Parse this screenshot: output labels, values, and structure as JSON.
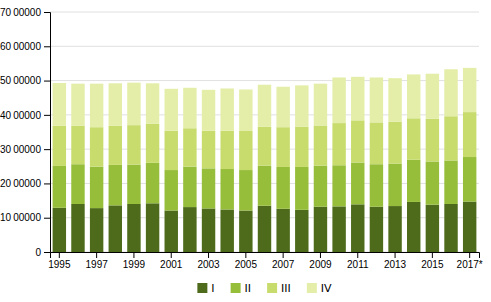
{
  "chart_data": {
    "type": "bar",
    "stacked": true,
    "grid": true,
    "legend": "bottom",
    "categories": [
      "1995",
      null,
      "1997",
      null,
      "1999",
      null,
      "2001",
      null,
      "2003",
      null,
      "2005",
      null,
      "2007",
      null,
      "2009",
      null,
      "2011",
      null,
      "2013",
      null,
      "2015",
      null,
      "2017*"
    ],
    "series": [
      {
        "name": "I",
        "color": "#4d6b1a",
        "values": [
          12900,
          14000,
          12800,
          13600,
          14000,
          14200,
          12100,
          13100,
          12700,
          12400,
          12100,
          13500,
          12600,
          12300,
          13200,
          13300,
          13900,
          13200,
          13400,
          14600,
          13800,
          14000,
          14700
        ]
      },
      {
        "name": "II",
        "color": "#97be3a",
        "values": [
          12200,
          11600,
          12100,
          11800,
          11500,
          11800,
          11800,
          11800,
          11700,
          11800,
          11800,
          11700,
          12200,
          12500,
          12000,
          12000,
          12200,
          12400,
          12400,
          12300,
          12600,
          12700,
          13000
        ]
      },
      {
        "name": "III",
        "color": "#c8dc6e",
        "values": [
          11700,
          11200,
          11500,
          11400,
          11500,
          11400,
          11500,
          11200,
          11000,
          11200,
          11400,
          11300,
          11600,
          11700,
          11700,
          12300,
          12300,
          12200,
          12200,
          12100,
          12500,
          12900,
          13100
        ]
      },
      {
        "name": "IV",
        "color": "#e4eea8",
        "values": [
          12500,
          12300,
          12700,
          12400,
          12400,
          11800,
          12200,
          11800,
          11900,
          12300,
          12100,
          12300,
          11800,
          12100,
          12200,
          13300,
          12700,
          13100,
          12700,
          12800,
          13100,
          13700,
          12900
        ]
      }
    ],
    "ylim": [
      0,
      70000
    ],
    "yticks": [
      0,
      {
        "value": 10000,
        "label": "10 00000"
      },
      {
        "value": 20000,
        "label": "20 00000"
      },
      {
        "value": 30000,
        "label": "30 00000"
      },
      {
        "value": 40000,
        "label": "40 00000"
      },
      {
        "value": 50000,
        "label": "50 00000"
      },
      {
        "value": 60000,
        "label": "60 00000"
      },
      {
        "value": 70000,
        "label": "70 00000"
      }
    ]
  }
}
